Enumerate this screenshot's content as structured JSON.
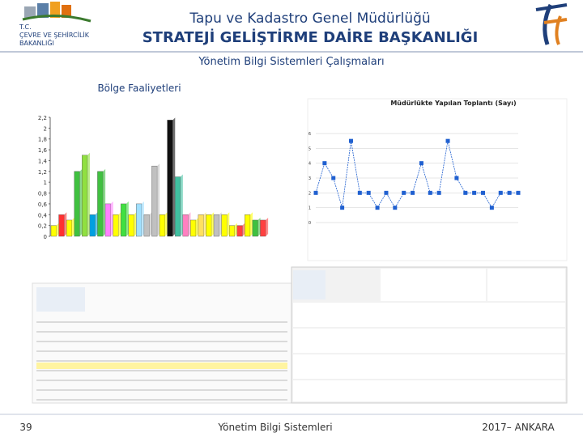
{
  "header": {
    "org_line1": "T.C.",
    "org_line2": "ÇEVRE VE ŞEHİRCİLİK",
    "org_line3": "BAKANLIĞI",
    "title": "Tapu ve Kadastro Genel Müdürlüğü",
    "subtitle": "STRATEJİ GELİŞTİRME DAİRE BAŞKANLIĞI"
  },
  "section": "Yönetim Bilgi Sistemleri Çalışmaları",
  "region_label": "Bölge Faaliyetleri",
  "bar_chart": {
    "ylim": [
      0,
      2.2
    ],
    "yticks": [
      0,
      {
        "value": 0.2,
        "label": "0,2"
      },
      {
        "value": 0.4,
        "label": "0,4"
      },
      {
        "value": 0.6,
        "label": "0,6"
      },
      {
        "value": 0.8,
        "label": "0,8"
      },
      1,
      {
        "value": 1.2,
        "label": "1,2"
      },
      {
        "value": 1.4,
        "label": "1,4"
      },
      {
        "value": 1.6,
        "label": "1,6"
      },
      {
        "value": 1.8,
        "label": "1,8"
      },
      2,
      {
        "value": 2.2,
        "label": "2,2"
      }
    ],
    "values": [
      0.2,
      0.4,
      0.3,
      1.2,
      1.5,
      0.4,
      1.2,
      0.6,
      0.4,
      0.6,
      0.4,
      0.6,
      0.4,
      1.3,
      0.4,
      2.15,
      1.1,
      0.4,
      0.3,
      0.4,
      0.4,
      0.4,
      0.4,
      0.2,
      0.2,
      0.4,
      0.3,
      0.3
    ],
    "colors": [
      "#ffff00",
      "#ff3030",
      "#ffff00",
      "#40c040",
      "#90e040",
      "#00a0e0",
      "#40c040",
      "#ff80ff",
      "#ffff00",
      "#40e040",
      "#ffff00",
      "#a0e0ff",
      "#c0c0c0",
      "#c0c0c0",
      "#ffff00",
      "#101010",
      "#40c0a0",
      "#ff80c0",
      "#ffff00",
      "#ffe060",
      "#ffff00",
      "#c0c0c0",
      "#ffff00",
      "#ffff00",
      "#ff4040",
      "#ffff00",
      "#40c040",
      "#ff4040"
    ]
  },
  "line_chart": {
    "title": "Müdürlükte Yapılan Toplantı (Sayı)",
    "ylim": [
      0,
      6
    ],
    "yticks": [
      0,
      1,
      2,
      3,
      4,
      5,
      6
    ],
    "color": "#2060d0",
    "values": [
      2,
      4,
      3,
      1,
      5.5,
      2,
      2,
      1,
      2,
      1,
      2,
      2,
      4,
      2,
      2,
      5.5,
      3,
      2,
      2,
      2,
      1,
      2,
      2,
      2
    ]
  },
  "footer": {
    "page": "39",
    "center": "Yönetim Bilgi Sistemleri",
    "right": "2017– ANKARA"
  }
}
